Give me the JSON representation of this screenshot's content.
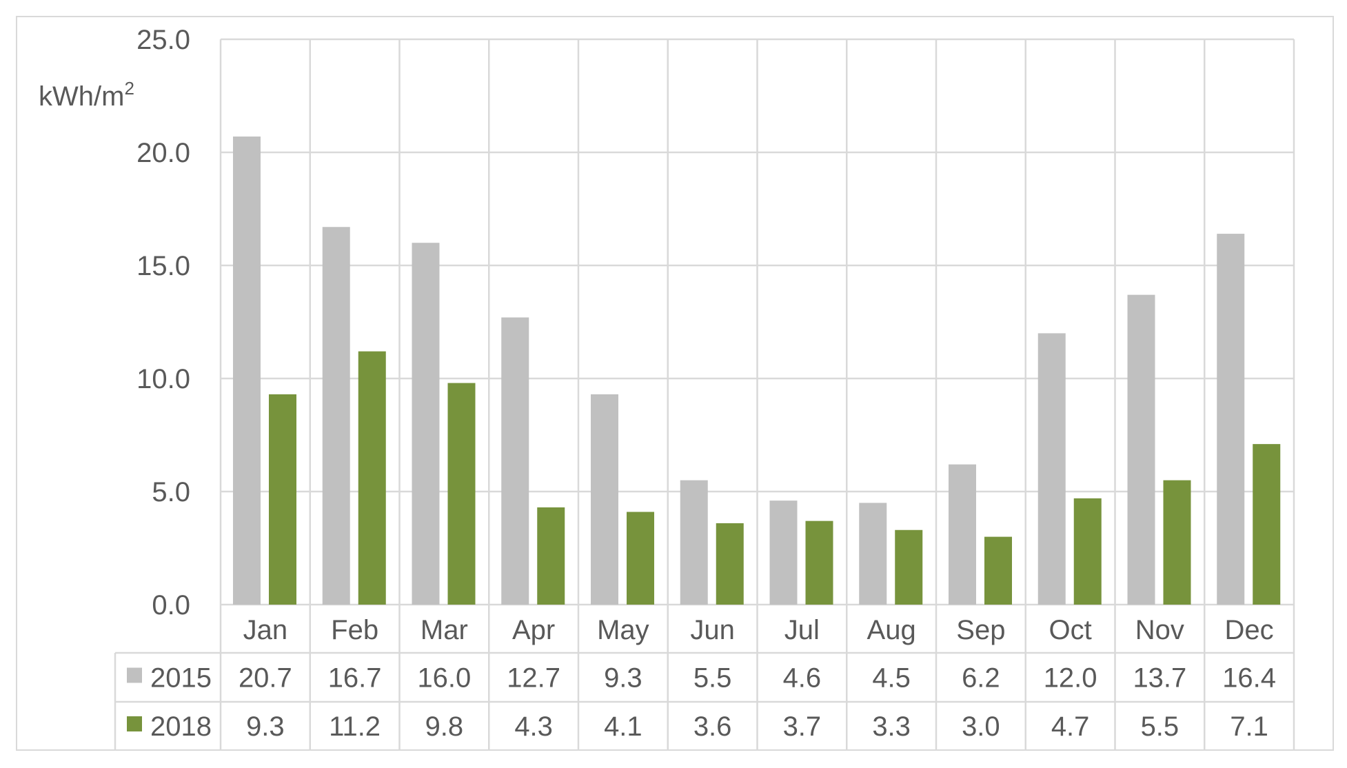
{
  "chart_data": {
    "type": "bar",
    "ylabel": "kWh/m",
    "ylabel_sup": "2",
    "ylim": [
      0,
      25
    ],
    "yticks": [
      "0.0",
      "5.0",
      "10.0",
      "15.0",
      "20.0",
      "25.0"
    ],
    "categories": [
      "Jan",
      "Feb",
      "Mar",
      "Apr",
      "May",
      "Jun",
      "Jul",
      "Aug",
      "Sep",
      "Oct",
      "Nov",
      "Dec"
    ],
    "series": [
      {
        "name": "2015",
        "color": "#c0c0c0",
        "values": [
          20.7,
          16.7,
          16.0,
          12.7,
          9.3,
          5.5,
          4.6,
          4.5,
          6.2,
          12.0,
          13.7,
          16.4
        ],
        "labels": [
          "20.7",
          "16.7",
          "16.0",
          "12.7",
          "9.3",
          "5.5",
          "4.6",
          "4.5",
          "6.2",
          "12.0",
          "13.7",
          "16.4"
        ]
      },
      {
        "name": "2018",
        "color": "#77933c",
        "values": [
          9.3,
          11.2,
          9.8,
          4.3,
          4.1,
          3.6,
          3.7,
          3.3,
          3.0,
          4.7,
          5.5,
          7.1
        ],
        "labels": [
          "9.3",
          "11.2",
          "9.8",
          "4.3",
          "4.1",
          "3.6",
          "3.7",
          "3.3",
          "3.0",
          "4.7",
          "5.5",
          "7.1"
        ]
      }
    ],
    "grid": true,
    "legend": "data-table"
  }
}
